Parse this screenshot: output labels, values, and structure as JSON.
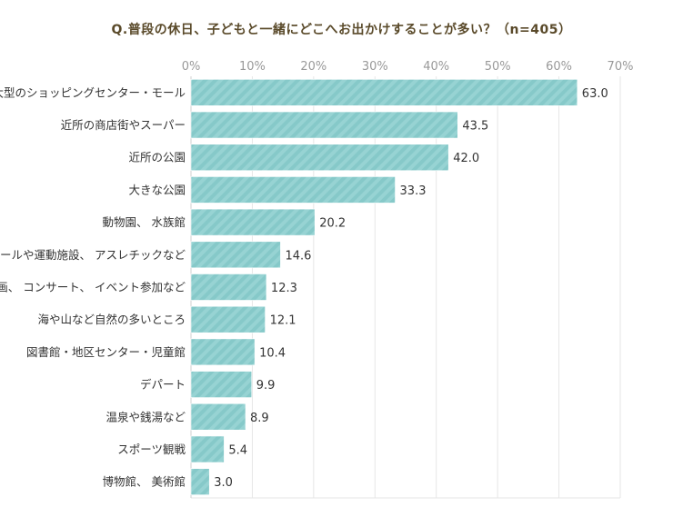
{
  "chart_data": {
    "type": "bar",
    "orientation": "horizontal",
    "title": "Q.普段の休日、子どもと一緒にどこへお出かけすることが多い？（n=405）",
    "xlabel": "",
    "ylabel": "",
    "xlim": [
      0,
      70
    ],
    "tick_labels": [
      "0%",
      "10%",
      "20%",
      "30%",
      "40%",
      "50%",
      "60%",
      "70%"
    ],
    "tick_values": [
      0,
      10,
      20,
      30,
      40,
      50,
      60,
      70
    ],
    "categories": [
      "大型のショッピングセンター・モール",
      "近所の商店街やスーパー",
      "近所の公園",
      "大きな公園",
      "動物園、 水族館",
      "プールや運動施設、 アスレチックなど",
      "映画、 コンサート、 イベント参加など",
      "海や山など自然の多いところ",
      "図書館・地区センター・児童館",
      "デパート",
      "温泉や銭湯など",
      "スポーツ観戦",
      "博物館、 美術館"
    ],
    "values": [
      63.0,
      43.5,
      42.0,
      33.3,
      20.2,
      14.6,
      12.3,
      12.1,
      10.4,
      9.9,
      8.9,
      5.4,
      3.0
    ],
    "value_labels": [
      "63.0",
      "43.5",
      "42.0",
      "33.3",
      "20.2",
      "14.6",
      "12.3",
      "12.1",
      "10.4",
      "9.9",
      "8.9",
      "5.4",
      "3.0"
    ],
    "grid": true,
    "legend": "none",
    "bar_color": "#86c9c9",
    "bar_stripe_color": "#97d3d3",
    "grid_color": "#e6e6e6",
    "title_color": "#5a4a2a"
  }
}
